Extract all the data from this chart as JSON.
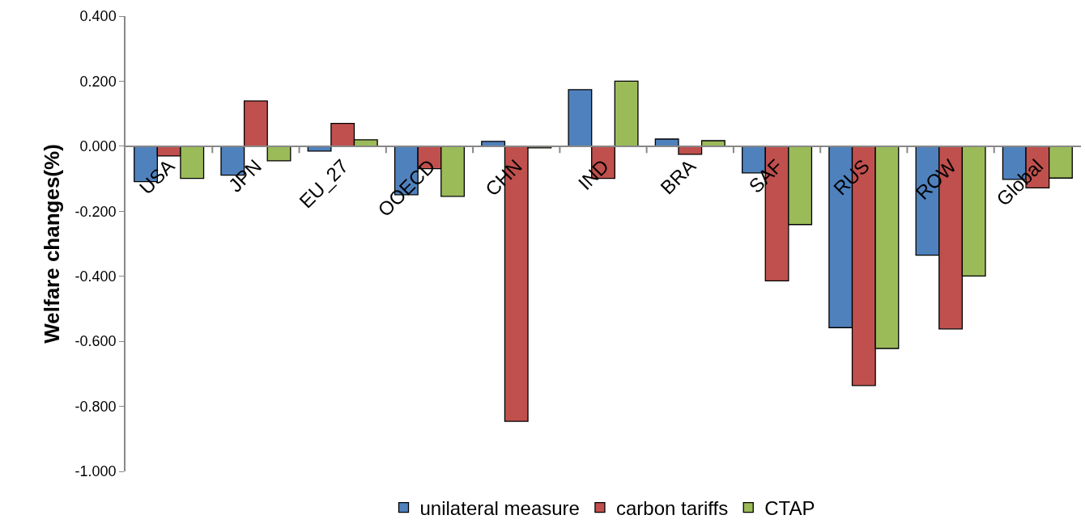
{
  "chart_data": {
    "type": "bar",
    "ylabel": "Welfare changes(%)",
    "categories": [
      "USA",
      "JPN",
      "EU_27",
      "OOECD",
      "CHN",
      "IND",
      "BRA",
      "SAF",
      "RUS",
      "ROW",
      "Global"
    ],
    "series": [
      {
        "name": "unilateral measure",
        "color": "#4f81bd",
        "values": [
          -0.109,
          -0.089,
          -0.015,
          -0.149,
          0.015,
          0.174,
          0.022,
          -0.082,
          -0.558,
          -0.335,
          -0.102
        ]
      },
      {
        "name": "carbon tariffs",
        "color": "#c0504d",
        "values": [
          -0.03,
          0.139,
          0.07,
          -0.069,
          -0.846,
          -0.099,
          -0.025,
          -0.414,
          -0.736,
          -0.562,
          -0.128
        ]
      },
      {
        "name": "CTAP",
        "color": "#9bbb59",
        "values": [
          -0.099,
          -0.045,
          0.02,
          -0.154,
          -0.005,
          0.2,
          0.017,
          -0.241,
          -0.622,
          -0.399,
          -0.098
        ]
      }
    ],
    "ylim": [
      -1,
      0.4
    ],
    "yticks": [
      {
        "value": -1,
        "label": "-1.000"
      },
      {
        "value": -0.8,
        "label": "-0.800"
      },
      {
        "value": -0.6,
        "label": "-0.600"
      },
      {
        "value": -0.4,
        "label": "-0.400"
      },
      {
        "value": -0.2,
        "label": "-0.200"
      },
      {
        "value": 0,
        "label": "0.000"
      },
      {
        "value": 0.2,
        "label": "0.200"
      },
      {
        "value": 0.4,
        "label": "0.400"
      }
    ],
    "grid": false,
    "legend": "bottom"
  }
}
